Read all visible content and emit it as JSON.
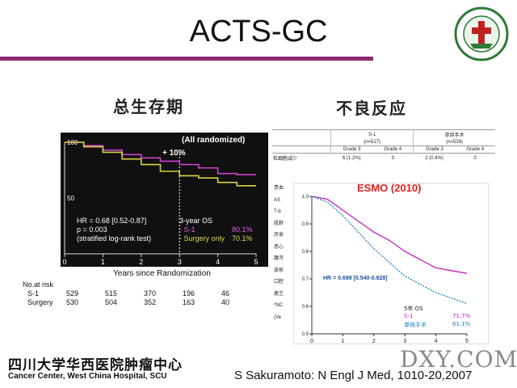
{
  "slide": {
    "title": "ACTS-GC",
    "os_heading": "总生存期",
    "ae_heading": "不良反应",
    "footer_cn": "四川大学华西医院肿瘤中心",
    "footer_en": "Cancer Center, West China Hospital, SCU",
    "citation": "S Sakuramoto: N Engl J Med, 1010-20,2007",
    "watermark": "DXY.COM",
    "accent_color": "#8e2a72"
  },
  "km_chart": {
    "header": "(All randomized)",
    "delta": "+ 10%",
    "hr_line": "HR = 0.68 [0.52-0.87]",
    "p_line": "p = 0.003",
    "test_line": "(stratified log-rank test)",
    "os_label": "3-year OS",
    "s1_label": "- S-1",
    "s1_value": "80.1%",
    "surgery_label": "- Surgery only",
    "surgery_value": "70.1%",
    "xlabel": "Years since Randomization",
    "risk_header": "No.at  risk",
    "risk_rows": [
      {
        "name": "S-1",
        "values": [
          "529",
          "515",
          "370",
          "196",
          "46"
        ]
      },
      {
        "name": "Surgery",
        "values": [
          "530",
          "504",
          "352",
          "163",
          "40"
        ]
      }
    ]
  },
  "chart_data": [
    {
      "type": "line",
      "header": "(All randomized)",
      "xlabel": "Years since Randomization",
      "ylabel": "",
      "xlim": [
        0,
        5
      ],
      "ylim": [
        0,
        100
      ],
      "x_ticks": [
        "0",
        "1",
        "2",
        "3",
        "4",
        "5"
      ],
      "y_ticks": [
        "0",
        "50",
        "100"
      ],
      "series": [
        {
          "name": "S-1",
          "color": "#d040d0",
          "x": [
            0,
            0.5,
            1,
            1.5,
            2,
            2.5,
            3,
            3.5,
            4,
            4.5,
            5
          ],
          "y": [
            100,
            97,
            93,
            89,
            86,
            83,
            80,
            77,
            72,
            71,
            71
          ]
        },
        {
          "name": "Surgery only",
          "color": "#d8d040",
          "x": [
            0,
            0.5,
            1,
            1.5,
            2,
            2.5,
            3,
            3.5,
            4,
            4.5,
            5
          ],
          "y": [
            100,
            96,
            91,
            85,
            80,
            74,
            70,
            68,
            64,
            61,
            61
          ]
        }
      ]
    },
    {
      "type": "line",
      "title": "ESMO (2010)",
      "xlim": [
        0,
        5
      ],
      "ylim": [
        0.5,
        1.0
      ],
      "x_ticks": [
        "0",
        "1",
        "2",
        "3",
        "4",
        "5"
      ],
      "y_ticks": [
        "1.0",
        "0.9",
        "0.8",
        "0.7",
        "0.6",
        "0.5"
      ],
      "hr_label": "HR = 0.699  [0.540-0.828]",
      "legend_title": "5年 OS",
      "series": [
        {
          "name": "S-1",
          "label_value": "71.7%",
          "color": "#c020c0",
          "x": [
            0,
            0.5,
            1,
            1.5,
            2,
            2.5,
            3,
            3.5,
            4,
            4.5,
            5
          ],
          "y": [
            1.0,
            0.99,
            0.95,
            0.91,
            0.87,
            0.84,
            0.8,
            0.77,
            0.74,
            0.73,
            0.72
          ]
        },
        {
          "name": "单纯手术",
          "label_value": "61.1%",
          "color": "#2080c0",
          "x": [
            0,
            0.5,
            1,
            1.5,
            2,
            2.5,
            3,
            3.5,
            4,
            4.5,
            5
          ],
          "y": [
            1.0,
            0.98,
            0.93,
            0.87,
            0.81,
            0.76,
            0.71,
            0.68,
            0.65,
            0.63,
            0.61
          ]
        }
      ]
    }
  ],
  "ae_table": {
    "col_s1": "S-1",
    "col_s1_n": "(n=517)",
    "col_surg": "单纯手术",
    "col_surg_n": "(n=526)",
    "grade3": "Grade 3",
    "grade4": "Grade 4",
    "row1_label": "粒细胞减少",
    "row1_s1_g3": "6 (1.2%)",
    "row1_s1_g4": "0",
    "row1_surg_g3": "2 (0.4%)",
    "row1_surg_g4": "0",
    "side_labels": [
      "贵血",
      "AS",
      "T-b",
      "肌酐",
      "厌食",
      "恶心",
      "腹泻",
      "皮疹",
      "口腔",
      "疲乏",
      "*NC",
      "(Ve"
    ]
  }
}
